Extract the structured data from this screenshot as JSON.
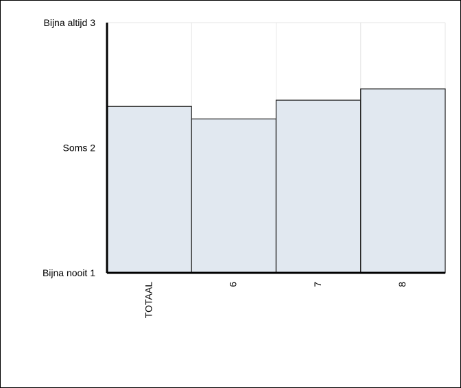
{
  "chart_data": {
    "type": "bar",
    "categories": [
      "TOTAAL",
      "6",
      "7",
      "8"
    ],
    "values": [
      2.33,
      2.23,
      2.38,
      2.47
    ],
    "ylim": [
      1,
      3
    ],
    "yticks": [
      {
        "value": 3,
        "label": "Bijna altijd 3"
      },
      {
        "value": 2,
        "label": "Soms 2"
      },
      {
        "value": 1,
        "label": "Bijna nooit 1"
      }
    ],
    "grid": true,
    "colors": {
      "bar_fill": "#e1e8f0",
      "bar_stroke": "#2b2b2b",
      "grid": "#e6e6e6",
      "axis": "#000000"
    }
  }
}
